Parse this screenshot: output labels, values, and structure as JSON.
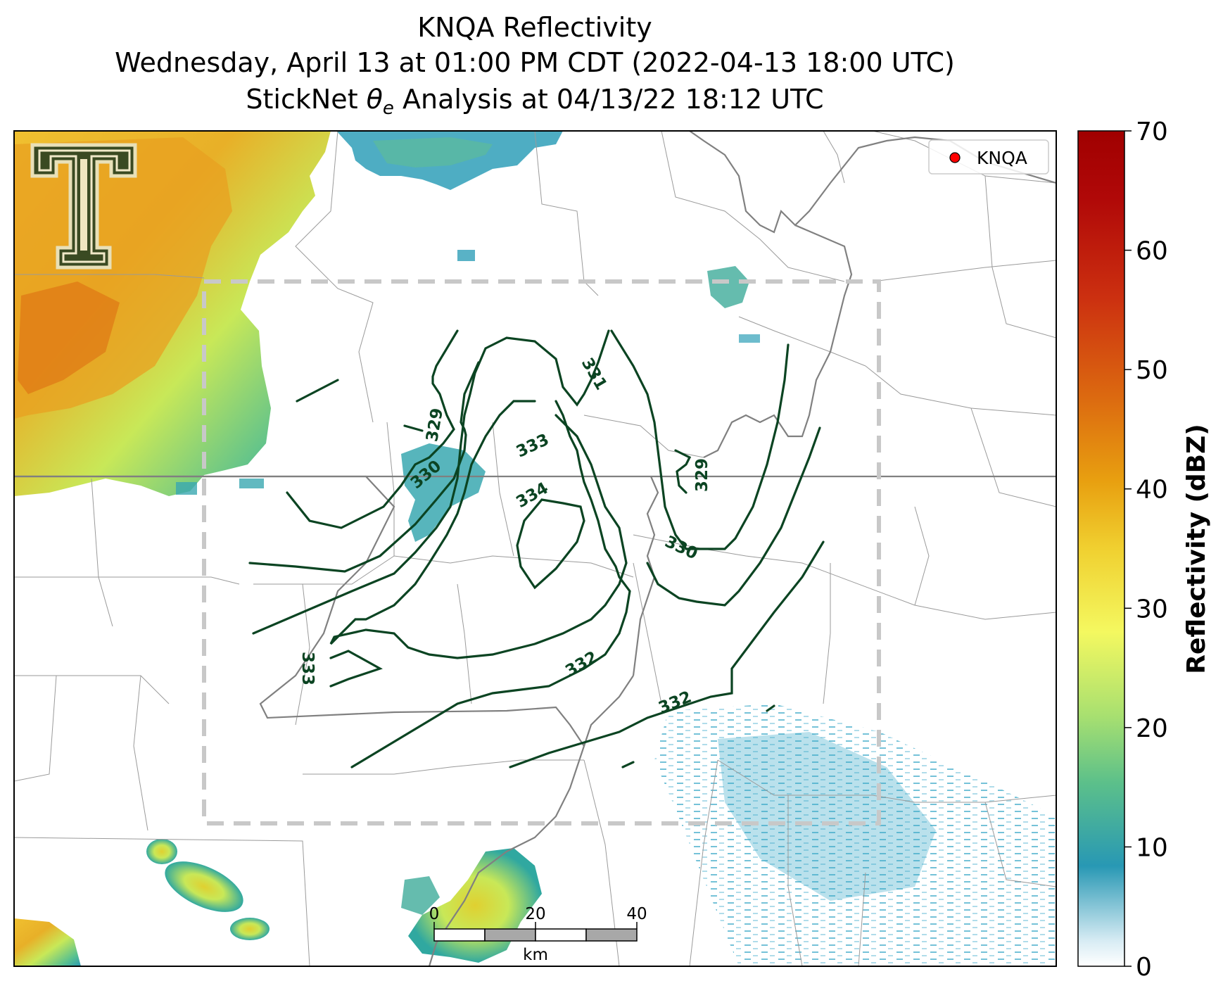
{
  "title": {
    "line1": "KNQA Reflectivity",
    "line2": "Wednesday, April 13 at 01:00 PM CDT (2022-04-13 18:00 UTC)",
    "line3_prefix": "StickNet ",
    "line3_theta": "θ",
    "line3_sub": "e",
    "line3_suffix": " Analysis at 04/13/22 18:12 UTC"
  },
  "legend": {
    "label": "KNQA",
    "marker_color": "#ff0000"
  },
  "colorbar": {
    "label": "Reflectivity (dBZ)",
    "min": 0,
    "max": 70,
    "ticks": [
      "0",
      "10",
      "20",
      "30",
      "40",
      "50",
      "60",
      "70"
    ]
  },
  "scalebar": {
    "ticks": [
      "0",
      "20",
      "40"
    ],
    "unit": "km"
  },
  "contours": {
    "color": "#0b4422",
    "labels": [
      "329",
      "330",
      "331",
      "333",
      "334",
      "329",
      "330",
      "333",
      "332",
      "332"
    ]
  },
  "logo": {
    "name": "texas-tech-double-t",
    "text": "T"
  },
  "colors": {
    "analysis_box": "#c8c8c8",
    "state_border": "#808080",
    "county_border": "#9a9a9a"
  }
}
